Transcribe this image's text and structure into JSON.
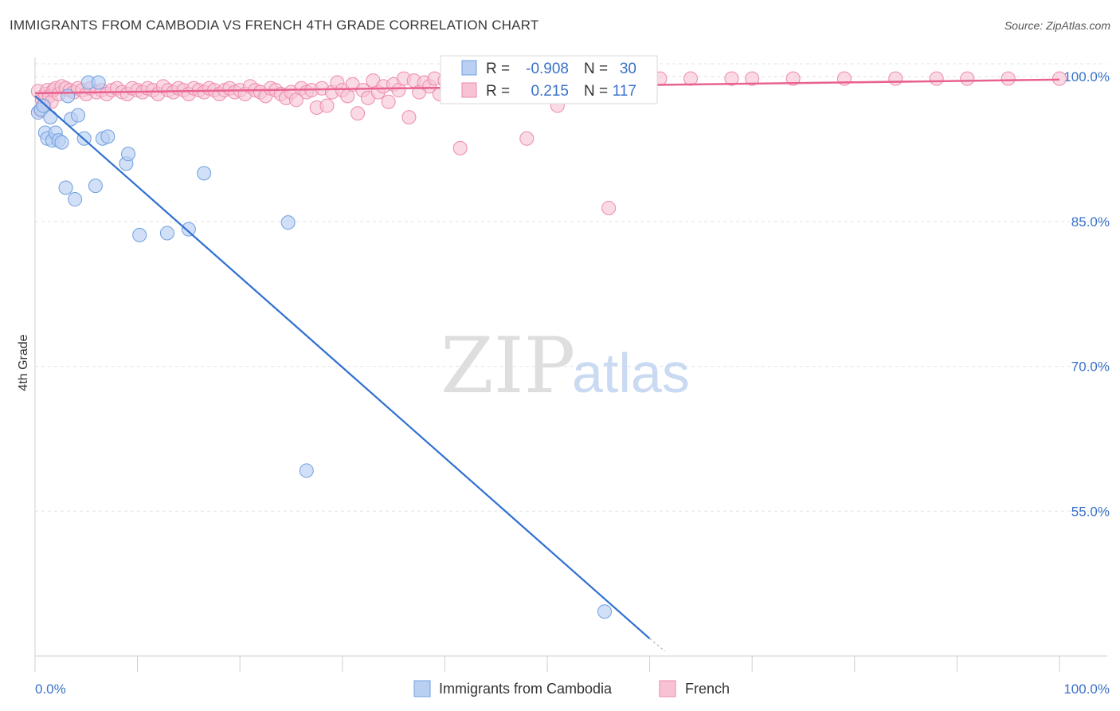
{
  "header": {
    "title": "IMMIGRANTS FROM CAMBODIA VS FRENCH 4TH GRADE CORRELATION CHART",
    "source": "Source: ZipAtlas.com"
  },
  "watermark": {
    "zip": "ZIP",
    "atlas": "atlas"
  },
  "chart_data": {
    "type": "scatter",
    "title": "IMMIGRANTS FROM CAMBODIA VS FRENCH 4TH GRADE CORRELATION CHART",
    "xlabel": "",
    "ylabel": "4th Grade",
    "xlim": [
      0,
      100
    ],
    "ylim": [
      40,
      102
    ],
    "x_tick_labels": [
      "0.0%",
      "100.0%"
    ],
    "y_ticks": [
      55,
      70,
      85,
      100
    ],
    "y_tick_labels": [
      "55.0%",
      "70.0%",
      "85.0%",
      "100.0%"
    ],
    "grid": true,
    "legend_position": "top-center",
    "colors": {
      "cambodia": "#6f9fe0",
      "cambodia_fill": "#b9d0f2",
      "cambodia_line": "#2f6fd1",
      "french": "#ee8aab",
      "french_fill": "#f7c3d4",
      "french_line": "#e8628e",
      "axis_text": "#3a72c9"
    },
    "stats": [
      {
        "r_label": "R =",
        "r_value": "-0.908",
        "n_label": "N =",
        "n_value": "30"
      },
      {
        "r_label": "R =",
        "r_value": "0.215",
        "n_label": "N =",
        "n_value": "117"
      }
    ],
    "series": [
      {
        "name": "Immigrants from Cambodia",
        "trend": {
          "x": [
            0,
            60
          ],
          "y": [
            98.0,
            41.8
          ],
          "dashed_to": [
            61.5,
            40.5
          ]
        },
        "points": [
          [
            0.3,
            96.3
          ],
          [
            0.6,
            96.6
          ],
          [
            0.8,
            97.0
          ],
          [
            1.0,
            94.2
          ],
          [
            1.2,
            93.6
          ],
          [
            1.5,
            95.8
          ],
          [
            1.7,
            93.4
          ],
          [
            2.0,
            94.2
          ],
          [
            2.3,
            93.4
          ],
          [
            2.6,
            93.2
          ],
          [
            3.0,
            88.5
          ],
          [
            3.2,
            98.0
          ],
          [
            3.5,
            95.6
          ],
          [
            3.9,
            87.3
          ],
          [
            4.2,
            96.0
          ],
          [
            4.8,
            93.6
          ],
          [
            5.2,
            99.4
          ],
          [
            5.9,
            88.7
          ],
          [
            6.2,
            99.4
          ],
          [
            6.6,
            93.6
          ],
          [
            7.1,
            93.8
          ],
          [
            8.9,
            91.0
          ],
          [
            9.1,
            92.0
          ],
          [
            10.2,
            83.6
          ],
          [
            12.9,
            83.8
          ],
          [
            15.0,
            84.2
          ],
          [
            16.5,
            90.0
          ],
          [
            24.7,
            84.9
          ],
          [
            26.5,
            59.2
          ],
          [
            55.6,
            44.6
          ]
        ]
      },
      {
        "name": "French",
        "trend": {
          "x": [
            0,
            100
          ],
          "y": [
            98.3,
            99.7
          ]
        },
        "points": [
          [
            0.3,
            98.5
          ],
          [
            0.5,
            96.5
          ],
          [
            0.7,
            97.6
          ],
          [
            0.9,
            97.0
          ],
          [
            1.0,
            98.2
          ],
          [
            1.2,
            98.6
          ],
          [
            1.4,
            98.0
          ],
          [
            1.6,
            97.4
          ],
          [
            1.8,
            98.6
          ],
          [
            2.0,
            98.8
          ],
          [
            2.3,
            98.2
          ],
          [
            2.6,
            99.0
          ],
          [
            3.0,
            98.8
          ],
          [
            3.4,
            98.6
          ],
          [
            3.8,
            98.4
          ],
          [
            4.2,
            98.8
          ],
          [
            4.6,
            98.6
          ],
          [
            5.0,
            98.2
          ],
          [
            5.4,
            98.8
          ],
          [
            6.0,
            98.4
          ],
          [
            6.5,
            98.6
          ],
          [
            7.0,
            98.2
          ],
          [
            7.5,
            98.6
          ],
          [
            8.0,
            98.8
          ],
          [
            8.5,
            98.4
          ],
          [
            9.0,
            98.2
          ],
          [
            9.5,
            98.8
          ],
          [
            10.0,
            98.6
          ],
          [
            10.5,
            98.4
          ],
          [
            11.0,
            98.8
          ],
          [
            11.5,
            98.6
          ],
          [
            12.0,
            98.2
          ],
          [
            12.5,
            99.0
          ],
          [
            13.0,
            98.6
          ],
          [
            13.5,
            98.4
          ],
          [
            14.0,
            98.8
          ],
          [
            14.5,
            98.6
          ],
          [
            15.0,
            98.2
          ],
          [
            15.5,
            98.8
          ],
          [
            16.0,
            98.6
          ],
          [
            16.5,
            98.4
          ],
          [
            17.0,
            98.8
          ],
          [
            17.5,
            98.6
          ],
          [
            18.0,
            98.2
          ],
          [
            18.5,
            98.6
          ],
          [
            19.0,
            98.8
          ],
          [
            19.5,
            98.4
          ],
          [
            20.0,
            98.6
          ],
          [
            20.5,
            98.2
          ],
          [
            21.0,
            99.0
          ],
          [
            21.5,
            98.6
          ],
          [
            22.0,
            98.4
          ],
          [
            22.5,
            98.0
          ],
          [
            23.0,
            98.8
          ],
          [
            23.5,
            98.6
          ],
          [
            24.0,
            98.2
          ],
          [
            24.5,
            97.8
          ],
          [
            25.0,
            98.4
          ],
          [
            25.5,
            97.6
          ],
          [
            26.0,
            98.8
          ],
          [
            26.5,
            98.4
          ],
          [
            27.0,
            98.6
          ],
          [
            27.5,
            96.8
          ],
          [
            28.0,
            98.8
          ],
          [
            28.5,
            97.0
          ],
          [
            29.0,
            98.4
          ],
          [
            29.5,
            99.4
          ],
          [
            30.0,
            98.6
          ],
          [
            30.5,
            98.0
          ],
          [
            31.0,
            99.2
          ],
          [
            31.5,
            96.2
          ],
          [
            32.0,
            98.6
          ],
          [
            32.5,
            97.8
          ],
          [
            33.0,
            99.6
          ],
          [
            33.5,
            98.4
          ],
          [
            34.0,
            99.0
          ],
          [
            34.5,
            97.4
          ],
          [
            35.0,
            99.2
          ],
          [
            35.5,
            98.6
          ],
          [
            36.0,
            99.8
          ],
          [
            36.5,
            95.8
          ],
          [
            37.0,
            99.6
          ],
          [
            37.5,
            98.4
          ],
          [
            38.0,
            99.4
          ],
          [
            38.5,
            99.0
          ],
          [
            39.0,
            99.8
          ],
          [
            39.5,
            98.2
          ],
          [
            40.0,
            99.6
          ],
          [
            40.5,
            99.2
          ],
          [
            41.0,
            99.8
          ],
          [
            41.5,
            92.6
          ],
          [
            42.0,
            98.8
          ],
          [
            42.5,
            99.6
          ],
          [
            43.0,
            99.2
          ],
          [
            44.0,
            99.8
          ],
          [
            45.0,
            98.6
          ],
          [
            46.0,
            99.4
          ],
          [
            47.0,
            99.8
          ],
          [
            48.0,
            93.6
          ],
          [
            49.0,
            99.6
          ],
          [
            50.0,
            99.2
          ],
          [
            51.0,
            97.0
          ],
          [
            52.0,
            99.8
          ],
          [
            53.0,
            99.6
          ],
          [
            55.0,
            99.8
          ],
          [
            56.0,
            86.4
          ],
          [
            58.0,
            99.8
          ],
          [
            61.0,
            99.8
          ],
          [
            64.0,
            99.8
          ],
          [
            68.0,
            99.8
          ],
          [
            70.0,
            99.8
          ],
          [
            74.0,
            99.8
          ],
          [
            79.0,
            99.8
          ],
          [
            84.0,
            99.8
          ],
          [
            88.0,
            99.8
          ],
          [
            91.0,
            99.8
          ],
          [
            95.0,
            99.8
          ],
          [
            100.0,
            99.8
          ]
        ]
      }
    ]
  },
  "legend_bottom": [
    {
      "label": "Immigrants from Cambodia"
    },
    {
      "label": "French"
    }
  ]
}
